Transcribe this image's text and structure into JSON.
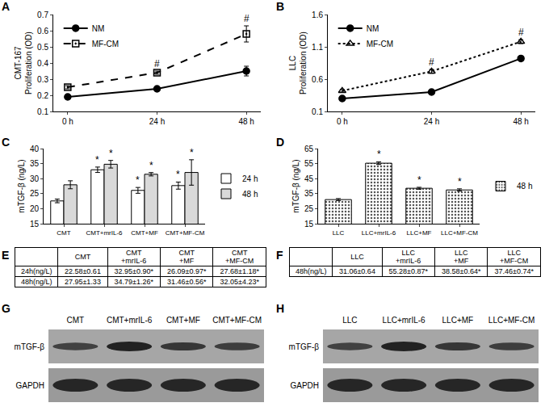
{
  "chart_data": [
    {
      "panel": "A",
      "type": "line",
      "y_label": "CMT-167\nProliferation (OD)",
      "categories": [
        "0 h",
        "24 h",
        "48 h"
      ],
      "series": [
        {
          "name": "NM",
          "color": "#000000",
          "marker": "circle",
          "line_style": "solid",
          "values": [
            0.19,
            0.24,
            0.35
          ],
          "errors": [
            0.005,
            0.008,
            0.03
          ]
        },
        {
          "name": "MF-CM",
          "color": "#000000",
          "marker": "square-open-dot",
          "line_style": "dashed",
          "values": [
            0.25,
            0.34,
            0.58
          ],
          "errors": [
            0.01,
            0.01,
            0.05
          ]
        }
      ],
      "ylim": [
        0.1,
        0.7
      ],
      "yticks": [
        0.1,
        0.2,
        0.3,
        0.4,
        0.5,
        0.6,
        0.7
      ],
      "legend": "upper left",
      "annotations": [
        {
          "category": "24 h",
          "series": "MF-CM",
          "text": "#"
        },
        {
          "category": "48 h",
          "series": "MF-CM",
          "text": "#"
        }
      ]
    },
    {
      "panel": "B",
      "type": "line",
      "y_label": "LLC\nProliferation (OD)",
      "categories": [
        "0 h",
        "24 h",
        "48 h"
      ],
      "series": [
        {
          "name": "NM",
          "color": "#000000",
          "marker": "circle",
          "line_style": "solid",
          "values": [
            0.3,
            0.4,
            0.92
          ],
          "errors": [
            0.01,
            0.01,
            0.02
          ]
        },
        {
          "name": "MF-CM",
          "color": "#000000",
          "marker": "triangle-up-open",
          "line_style": "dotted",
          "values": [
            0.42,
            0.72,
            1.18
          ],
          "errors": [
            0.02,
            0.03,
            0.03
          ]
        }
      ],
      "ylim": [
        0.1,
        1.6
      ],
      "yticks": [
        0.1,
        0.6,
        1.1,
        1.6
      ],
      "legend": "upper left",
      "annotations": [
        {
          "category": "24 h",
          "series": "MF-CM",
          "text": "#"
        },
        {
          "category": "48 h",
          "series": "MF-CM",
          "text": "#"
        }
      ]
    },
    {
      "panel": "C",
      "type": "bar",
      "y_label": "mTGF-β (ng/L)",
      "categories": [
        "CMT",
        "CMT+mrIL-6",
        "CMT+MF",
        "CMT+MF-CM"
      ],
      "series": [
        {
          "name": "24 h",
          "color": "#ffffff",
          "values": [
            22.58,
            32.95,
            26.09,
            27.68
          ],
          "errors": [
            0.61,
            0.9,
            0.97,
            1.18
          ]
        },
        {
          "name": "48 h",
          "color": "#d9d9d9",
          "values": [
            27.95,
            34.79,
            31.46,
            32.05
          ],
          "errors": [
            1.33,
            1.26,
            0.56,
            4.23
          ]
        }
      ],
      "ylim": [
        15,
        40
      ],
      "yticks": [
        15,
        20,
        25,
        30,
        35,
        40
      ],
      "legend": "outside right",
      "annotations": [
        {
          "category": "CMT+mrIL-6",
          "series": "24 h",
          "text": "*"
        },
        {
          "category": "CMT+mrIL-6",
          "series": "48 h",
          "text": "*"
        },
        {
          "category": "CMT+MF",
          "series": "24 h",
          "text": "*"
        },
        {
          "category": "CMT+MF",
          "series": "48 h",
          "text": "*"
        },
        {
          "category": "CMT+MF-CM",
          "series": "24 h",
          "text": "*"
        },
        {
          "category": "CMT+MF-CM",
          "series": "48 h",
          "text": "*"
        }
      ]
    },
    {
      "panel": "D",
      "type": "bar",
      "y_label": "mTGF-β (ng/L)",
      "categories": [
        "LLC",
        "LLC+mrIL-6",
        "LLC+MF",
        "LLC+MF-CM"
      ],
      "series": [
        {
          "name": "48 h",
          "color": "#ffffff",
          "marker": "dots",
          "values": [
            31.06,
            55.28,
            38.58,
            37.46
          ],
          "errors": [
            0.64,
            0.87,
            0.64,
            0.74
          ]
        }
      ],
      "ylim": [
        15,
        65
      ],
      "yticks": [
        15,
        25,
        35,
        45,
        55,
        65
      ],
      "legend": "outside right",
      "annotations": [
        {
          "category": "LLC+mrIL-6",
          "series": "48 h",
          "text": "*"
        },
        {
          "category": "LLC+MF",
          "series": "48 h",
          "text": "*"
        },
        {
          "category": "LLC+MF-CM",
          "series": "48 h",
          "text": "*"
        }
      ]
    }
  ],
  "tables": [
    {
      "panel": "E",
      "header": [
        null,
        "CMT",
        "CMT\n+mrIL-6",
        "CMT\n+MF",
        "CMT\n+MF-CM"
      ],
      "rows": [
        [
          "24h(ng/L)",
          "22.58±0.61",
          "32.95±0.90*",
          "26.09±0.97*",
          "27.68±1.18*"
        ],
        [
          "48h(ng/L)",
          "27.95±1.33",
          "34.79±1.26*",
          "31.46±0.56*",
          "32.05±4.23*"
        ]
      ]
    },
    {
      "panel": "F",
      "header": [
        null,
        "LLC",
        "LLC\n+mrIL-6",
        "LLC\n+MF",
        "LLC\n+MF-CM"
      ],
      "rows": [
        [
          "48h(ng/L)",
          "31.06±0.64",
          "55.28±0.87*",
          "38.58±0.64*",
          "37.46±0.74*"
        ]
      ]
    }
  ],
  "blots": [
    {
      "panel": "G",
      "lanes": [
        "CMT",
        "CMT+mrIL-6",
        "CMT+MF",
        "CMT+MF-CM"
      ],
      "rows": [
        "mTGF-β",
        "GAPDH"
      ]
    },
    {
      "panel": "H",
      "lanes": [
        "LLC",
        "LLC+mrIL-6",
        "LLC+MF",
        "LLC+MF-CM"
      ],
      "rows": [
        "mTGF-β",
        "GAPDH"
      ]
    }
  ]
}
